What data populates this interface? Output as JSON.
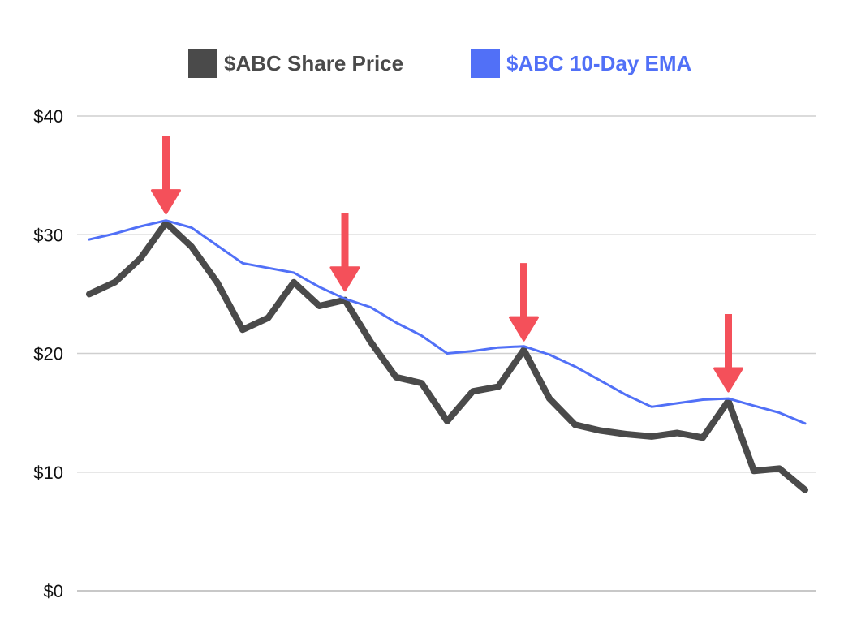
{
  "chart_data": {
    "type": "line",
    "title": "",
    "xlabel": "",
    "ylabel": "",
    "ylim": [
      0,
      40
    ],
    "y_ticks": [
      0,
      10,
      20,
      30,
      40
    ],
    "y_tick_labels": [
      "$0",
      "$10",
      "$20",
      "$30",
      "$40"
    ],
    "grid": true,
    "legend_position": "top-center",
    "x": [
      1,
      2,
      3,
      4,
      5,
      6,
      7,
      8,
      9,
      10,
      11,
      12,
      13,
      14,
      15,
      16,
      17,
      18,
      19,
      20,
      21,
      22,
      23,
      24,
      25,
      26,
      27,
      28,
      29
    ],
    "series": [
      {
        "name": "$ABC Share Price",
        "color": "#4a4a4a",
        "values": [
          25,
          26,
          28,
          31,
          29,
          26,
          22,
          23,
          26,
          24,
          24.5,
          21,
          18,
          17.5,
          14.3,
          16.8,
          17.2,
          20.3,
          16.2,
          14,
          13.5,
          13.2,
          13,
          13.3,
          12.9,
          16,
          10.1,
          10.3,
          8.5
        ]
      },
      {
        "name": "$ABC 10-Day EMA",
        "color": "#5170f7",
        "values": [
          29.6,
          30.1,
          30.7,
          31.2,
          30.6,
          29.1,
          27.6,
          27.2,
          26.8,
          25.6,
          24.6,
          23.9,
          22.6,
          21.5,
          20,
          20.2,
          20.5,
          20.6,
          19.9,
          18.9,
          17.7,
          16.5,
          15.5,
          15.8,
          16.1,
          16.2,
          15.6,
          15,
          14.1
        ]
      }
    ],
    "annotations": [
      {
        "type": "arrow-down",
        "color": "#f4505a",
        "x": 4,
        "y": 31
      },
      {
        "type": "arrow-down",
        "color": "#f4505a",
        "x": 11,
        "y": 24.5
      },
      {
        "type": "arrow-down",
        "color": "#f4505a",
        "x": 18,
        "y": 20.3
      },
      {
        "type": "arrow-down",
        "color": "#f4505a",
        "x": 26,
        "y": 16
      }
    ]
  }
}
